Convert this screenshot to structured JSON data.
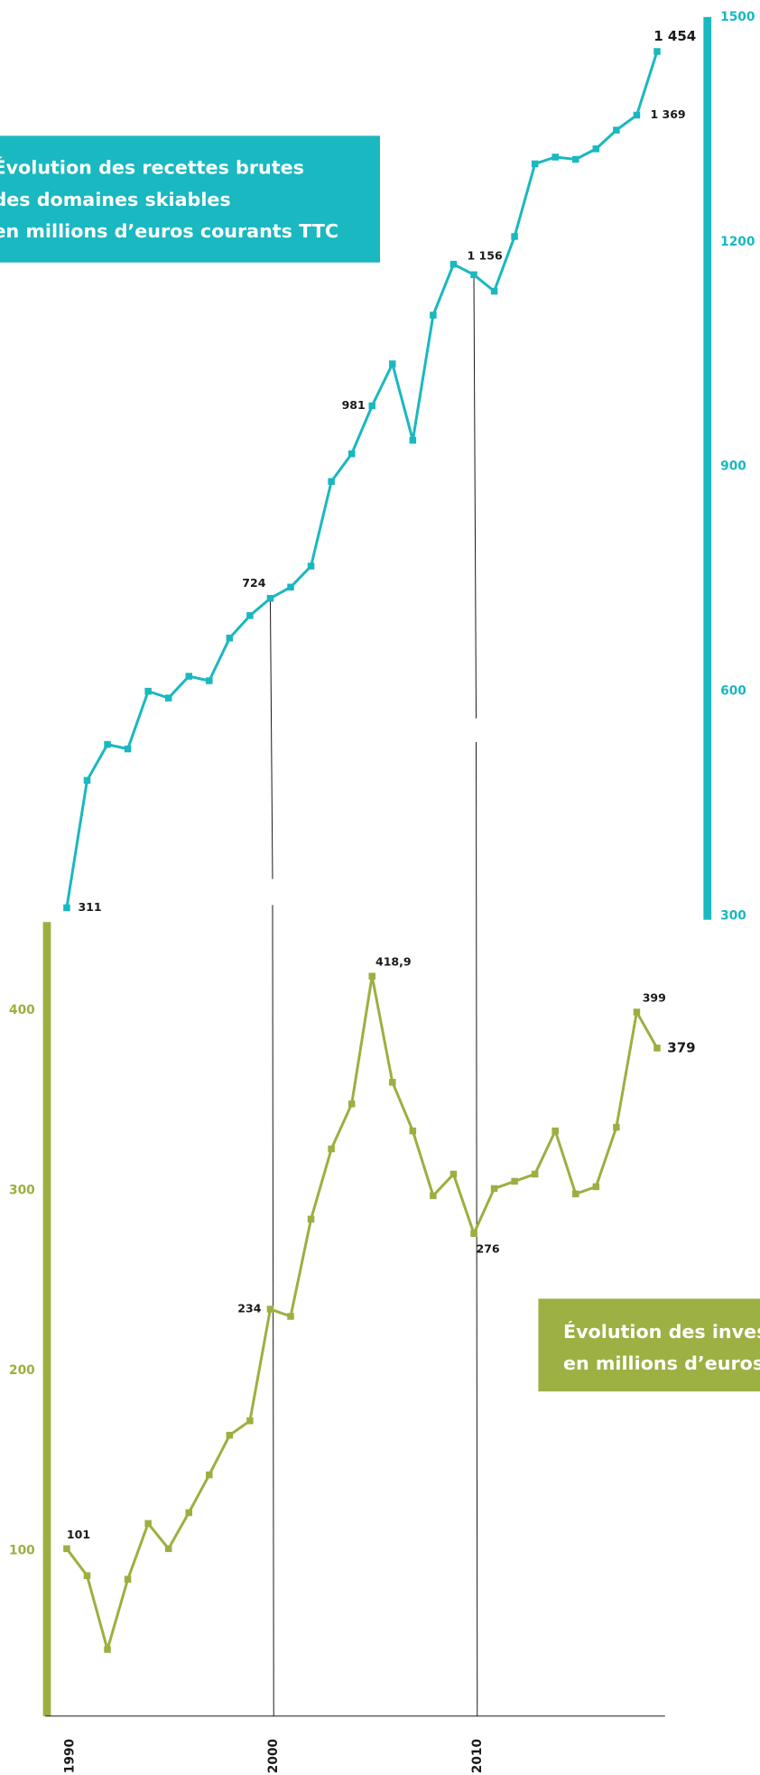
{
  "chart_data": {
    "type": "line",
    "x": [
      1990,
      1991,
      1992,
      1993,
      1994,
      1995,
      1996,
      1997,
      1998,
      1999,
      2000,
      2001,
      2002,
      2003,
      2004,
      2005,
      2006,
      2007,
      2008,
      2009,
      2010,
      2011,
      2012,
      2013,
      2014,
      2015,
      2016,
      2017,
      2018,
      2019
    ],
    "xlim": [
      1990,
      2019
    ],
    "xticks": [
      1990,
      2000,
      2010
    ],
    "ylim": [
      8,
      449
    ],
    "yticks": [
      100,
      200,
      300,
      400
    ],
    "y2lim": [
      295,
      1500
    ],
    "y2ticks": [
      300,
      600,
      900,
      1200,
      1500
    ],
    "grid": false,
    "highlight_color": "#e8202a",
    "series": [
      {
        "name": "Recettes brutes",
        "color": "#1ab8c0",
        "axis": "y2",
        "values": [
          311,
          481,
          529,
          523,
          600,
          591,
          620,
          614,
          671,
          701,
          724,
          739,
          767,
          880,
          917,
          981,
          1037,
          935,
          1102,
          1170,
          1156,
          1134,
          1207,
          1304,
          1313,
          1310,
          1324,
          1349,
          1369,
          1454
        ],
        "value_labels": [
          "311",
          null,
          null,
          null,
          null,
          null,
          null,
          null,
          null,
          null,
          "724",
          null,
          null,
          null,
          null,
          "981",
          null,
          null,
          null,
          null,
          "1 156",
          null,
          null,
          null,
          null,
          null,
          null,
          null,
          "1 369",
          "1 454"
        ]
      },
      {
        "name": "Investissements",
        "color": "#9bb040",
        "axis": "y",
        "values": [
          101,
          86,
          45,
          84,
          115,
          101,
          121,
          142,
          164,
          172,
          234,
          230,
          284,
          323,
          348,
          418.9,
          360,
          333,
          297,
          309,
          276,
          301,
          305,
          309,
          333,
          298,
          302,
          335,
          399,
          379
        ],
        "value_labels": [
          "101",
          null,
          null,
          null,
          null,
          null,
          null,
          null,
          null,
          null,
          "234",
          null,
          null,
          null,
          null,
          "418,9",
          null,
          null,
          null,
          null,
          "276",
          null,
          null,
          null,
          null,
          null,
          null,
          null,
          "399",
          "379"
        ]
      }
    ],
    "annotations": [
      {
        "lines": [
          "Évolution des recettes brutes",
          "des domaines skiables",
          "en millions d’euros courants TTC"
        ],
        "color": "#1ab8c0"
      },
      {
        "lines": [
          "Évolution des investissements",
          "en millions d’euros"
        ],
        "color": "#9db043"
      }
    ]
  }
}
